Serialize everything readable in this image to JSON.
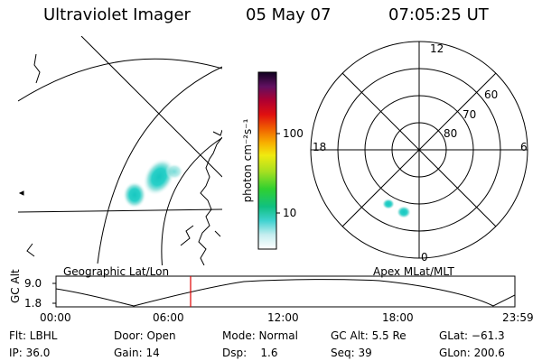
{
  "header": {
    "title": "Ultraviolet Imager",
    "date": "05 May 07",
    "time": "07:05:25 UT"
  },
  "colorbar": {
    "label": "photon cm⁻²s⁻¹",
    "ticks": [
      "100",
      "10"
    ]
  },
  "polar": {
    "mlt_labels": [
      "12",
      "18",
      "6",
      "0"
    ],
    "lat_labels": [
      "60",
      "70",
      "80"
    ]
  },
  "panels": {
    "left_caption": "Geographic Lat/Lon",
    "right_caption": "Apex MLat/MLT"
  },
  "altitude": {
    "axis_label": "GC Alt",
    "ticks": [
      "9.0",
      "1.8"
    ],
    "time_ticks": [
      "00:00",
      "06:00",
      "12:00",
      "18:00",
      "23:59"
    ],
    "marker_color": "#e00000",
    "current_time": "07:05:25"
  },
  "info": {
    "flt": "Flt: LBHL",
    "ip": "IP: 36.0",
    "door": "Door: Open",
    "gain": "Gain: 14",
    "mode": "Mode: Normal",
    "dsp": "Dsp:    1.6",
    "gc_alt": "GC Alt: 5.5 Re",
    "seq": "Seq: 39",
    "glat": "GLat: −61.3",
    "glon": "GLon: 200.6"
  }
}
